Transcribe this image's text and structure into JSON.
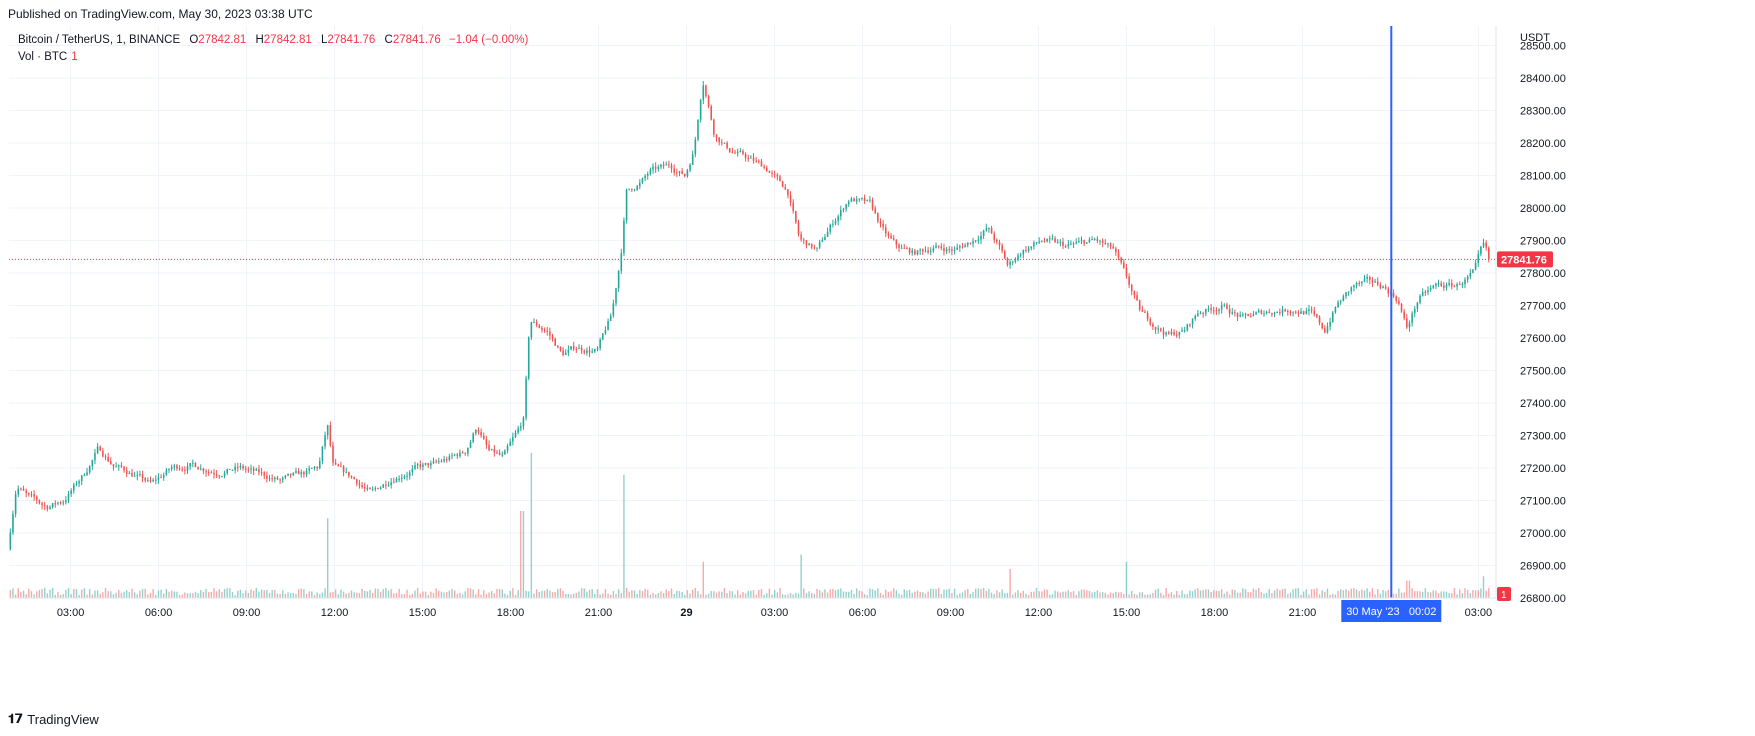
{
  "header": {
    "published": "Published on TradingView.com, May 30, 2023 03:38 UTC"
  },
  "legend": {
    "symbol": "Bitcoin / TetherUS, 1, BINANCE",
    "open_label": "O",
    "open": "27842.81",
    "high_label": "H",
    "high": "27842.81",
    "low_label": "L",
    "low": "27841.76",
    "close_label": "C",
    "close": "27841.76",
    "change": "−1.04 (−0.00%)"
  },
  "volume_legend": {
    "label": "Vol · BTC",
    "value": "1"
  },
  "price_axis": {
    "currency": "USDT",
    "last_price_label": "27841.76",
    "volume_badge": "1"
  },
  "crosshair": {
    "time_label": "30 May '23   00:02"
  },
  "footer": {
    "brand": "TradingView"
  },
  "colors": {
    "up": "#26a69a",
    "down": "#ef5350",
    "crosshair": "#2962ff",
    "grid": "#f0f3fa"
  },
  "chart_data": {
    "type": "candlestick",
    "y_unit": "USDT",
    "yticks": [
      26800,
      26900,
      27000,
      27100,
      27200,
      27300,
      27400,
      27500,
      27600,
      27700,
      27800,
      27900,
      28000,
      28100,
      28200,
      28300,
      28400,
      28500
    ],
    "ylim": [
      26800,
      28560
    ],
    "xticks": [
      {
        "label": "03:00",
        "t": 3
      },
      {
        "label": "06:00",
        "t": 6
      },
      {
        "label": "09:00",
        "t": 9
      },
      {
        "label": "12:00",
        "t": 12
      },
      {
        "label": "15:00",
        "t": 15
      },
      {
        "label": "18:00",
        "t": 18
      },
      {
        "label": "21:00",
        "t": 21
      },
      {
        "label": "29",
        "t": 24
      },
      {
        "label": "03:00",
        "t": 27
      },
      {
        "label": "06:00",
        "t": 30
      },
      {
        "label": "09:00",
        "t": 33
      },
      {
        "label": "12:00",
        "t": 36
      },
      {
        "label": "15:00",
        "t": 39
      },
      {
        "label": "18:00",
        "t": 42
      },
      {
        "label": "21:00",
        "t": 45
      },
      {
        "label": "03:00",
        "t": 51
      }
    ],
    "xlim": [
      0.9,
      51.6
    ],
    "last_price": 27841.76,
    "crosshair_t": 48.03,
    "grid": true,
    "price_path": [
      [
        0.9,
        26950
      ],
      [
        1.2,
        27150
      ],
      [
        1.6,
        27110
      ],
      [
        2.2,
        27080
      ],
      [
        2.8,
        27100
      ],
      [
        3.5,
        27180
      ],
      [
        4.0,
        27260
      ],
      [
        4.5,
        27210
      ],
      [
        5.2,
        27180
      ],
      [
        5.8,
        27150
      ],
      [
        6.5,
        27200
      ],
      [
        7.2,
        27210
      ],
      [
        8.0,
        27190
      ],
      [
        8.8,
        27200
      ],
      [
        9.5,
        27180
      ],
      [
        10.2,
        27160
      ],
      [
        11.0,
        27180
      ],
      [
        11.5,
        27200
      ],
      [
        11.8,
        27330
      ],
      [
        12.0,
        27200
      ],
      [
        12.8,
        27160
      ],
      [
        13.3,
        27120
      ],
      [
        14.0,
        27170
      ],
      [
        14.8,
        27200
      ],
      [
        15.5,
        27210
      ],
      [
        16.5,
        27250
      ],
      [
        16.9,
        27330
      ],
      [
        17.3,
        27250
      ],
      [
        17.8,
        27230
      ],
      [
        18.3,
        27310
      ],
      [
        18.5,
        27350
      ],
      [
        18.7,
        27650
      ],
      [
        19.3,
        27620
      ],
      [
        19.8,
        27550
      ],
      [
        20.3,
        27570
      ],
      [
        21.0,
        27560
      ],
      [
        21.5,
        27670
      ],
      [
        21.8,
        27850
      ],
      [
        22.0,
        28050
      ],
      [
        22.5,
        28080
      ],
      [
        22.8,
        28110
      ],
      [
        23.5,
        28130
      ],
      [
        24.0,
        28100
      ],
      [
        24.3,
        28180
      ],
      [
        24.6,
        28400
      ],
      [
        25.0,
        28230
      ],
      [
        25.5,
        28180
      ],
      [
        26.2,
        28150
      ],
      [
        26.8,
        28120
      ],
      [
        27.5,
        28050
      ],
      [
        27.9,
        27900
      ],
      [
        28.5,
        27870
      ],
      [
        29.0,
        27950
      ],
      [
        29.6,
        28030
      ],
      [
        30.3,
        28010
      ],
      [
        30.8,
        27920
      ],
      [
        31.2,
        27880
      ],
      [
        31.8,
        27860
      ],
      [
        32.5,
        27880
      ],
      [
        33.2,
        27870
      ],
      [
        33.8,
        27900
      ],
      [
        34.3,
        27940
      ],
      [
        34.7,
        27880
      ],
      [
        35.0,
        27820
      ],
      [
        35.5,
        27870
      ],
      [
        36.2,
        27900
      ],
      [
        37.0,
        27880
      ],
      [
        38.0,
        27900
      ],
      [
        38.6,
        27870
      ],
      [
        39.0,
        27790
      ],
      [
        39.5,
        27680
      ],
      [
        40.0,
        27640
      ],
      [
        40.5,
        27610
      ],
      [
        41.0,
        27620
      ],
      [
        41.5,
        27680
      ],
      [
        42.3,
        27700
      ],
      [
        43.0,
        27660
      ],
      [
        43.8,
        27680
      ],
      [
        44.6,
        27690
      ],
      [
        45.3,
        27680
      ],
      [
        45.8,
        27620
      ],
      [
        46.2,
        27700
      ],
      [
        46.8,
        27760
      ],
      [
        47.3,
        27770
      ],
      [
        47.8,
        27760
      ],
      [
        48.3,
        27720
      ],
      [
        48.6,
        27630
      ],
      [
        49.0,
        27720
      ],
      [
        49.6,
        27760
      ],
      [
        50.3,
        27760
      ],
      [
        50.9,
        27800
      ],
      [
        51.2,
        27880
      ],
      [
        51.4,
        27841.76
      ]
    ],
    "volume_spikes": [
      {
        "t": 11.8,
        "rel": 0.55
      },
      {
        "t": 18.4,
        "rel": 0.6
      },
      {
        "t": 18.7,
        "rel": 1.0
      },
      {
        "t": 21.9,
        "rel": 0.85
      },
      {
        "t": 24.6,
        "rel": 0.25
      },
      {
        "t": 27.9,
        "rel": 0.3
      },
      {
        "t": 35.0,
        "rel": 0.2
      },
      {
        "t": 39.0,
        "rel": 0.25
      },
      {
        "t": 48.6,
        "rel": 0.12
      },
      {
        "t": 51.2,
        "rel": 0.15
      }
    ]
  }
}
